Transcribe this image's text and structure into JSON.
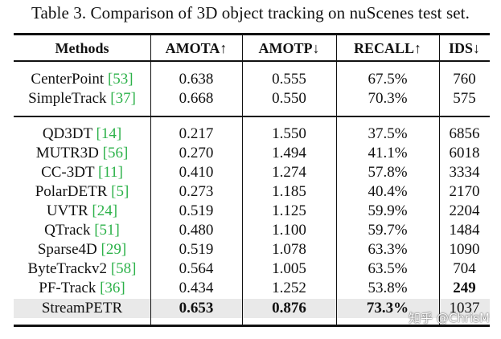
{
  "caption": "Table 3. Comparison of 3D object tracking on nuScenes test set.",
  "headers": [
    "Methods",
    "AMOTA↑",
    "AMOTP↓",
    "RECALL↑",
    "IDS↓"
  ],
  "group1": [
    {
      "method": "CenterPoint",
      "ref": "53",
      "amota": "0.638",
      "amotp": "0.555",
      "recall": "67.5%",
      "ids": "760"
    },
    {
      "method": "SimpleTrack",
      "ref": "37",
      "amota": "0.668",
      "amotp": "0.550",
      "recall": "70.3%",
      "ids": "575"
    }
  ],
  "group2": [
    {
      "method": "QD3DT",
      "ref": "14",
      "amota": "0.217",
      "amotp": "1.550",
      "recall": "37.5%",
      "ids": "6856"
    },
    {
      "method": "MUTR3D",
      "ref": "56",
      "amota": "0.270",
      "amotp": "1.494",
      "recall": "41.1%",
      "ids": "6018"
    },
    {
      "method": "CC-3DT",
      "ref": "11",
      "amota": "0.410",
      "amotp": "1.274",
      "recall": "57.8%",
      "ids": "3334"
    },
    {
      "method": "PolarDETR",
      "ref": "5",
      "amota": "0.273",
      "amotp": "1.185",
      "recall": "40.4%",
      "ids": "2170"
    },
    {
      "method": "UVTR",
      "ref": "24",
      "amota": "0.519",
      "amotp": "1.125",
      "recall": "59.9%",
      "ids": "2204"
    },
    {
      "method": "QTrack",
      "ref": "51",
      "amota": "0.480",
      "amotp": "1.100",
      "recall": "59.7%",
      "ids": "1484"
    },
    {
      "method": "Sparse4D",
      "ref": "29",
      "amota": "0.519",
      "amotp": "1.078",
      "recall": "63.3%",
      "ids": "1090"
    },
    {
      "method": "ByteTrackv2",
      "ref": "58",
      "amota": "0.564",
      "amotp": "1.005",
      "recall": "63.5%",
      "ids": "704"
    },
    {
      "method": "PF-Track",
      "ref": "36",
      "amota": "0.434",
      "amotp": "1.252",
      "recall": "53.8%",
      "ids": "249"
    },
    {
      "method": "StreamPETR",
      "ref": "",
      "amota": "0.653",
      "amotp": "0.876",
      "recall": "73.3%",
      "ids": "1037"
    }
  ],
  "watermark": "知乎 @ChrisM"
}
